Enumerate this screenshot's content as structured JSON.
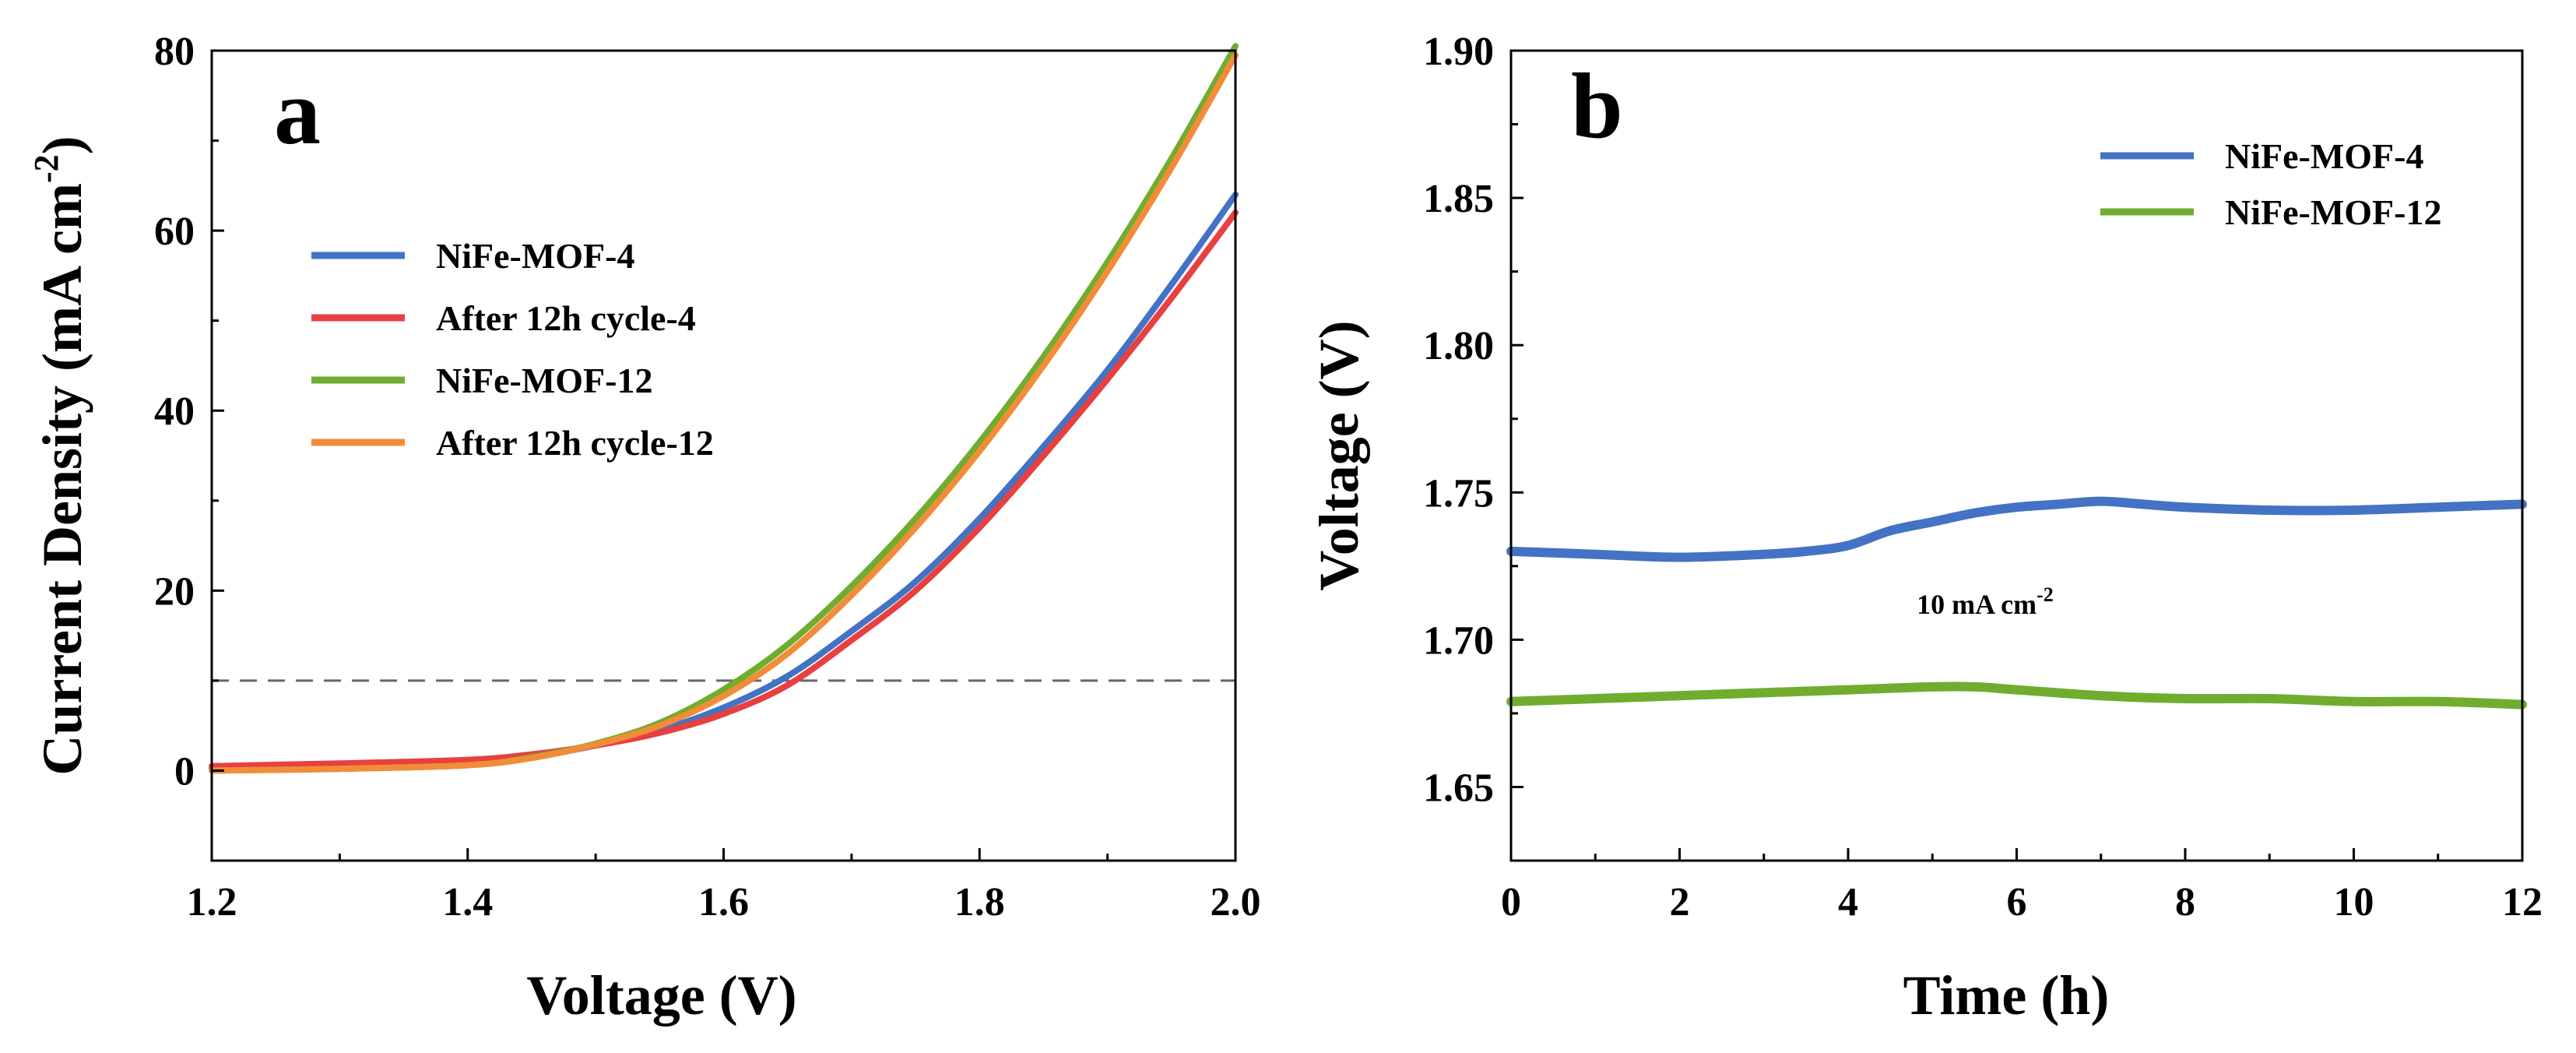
{
  "figure": {
    "background": "#ffffff"
  },
  "chart_data": [
    {
      "panel": "a",
      "type": "line",
      "title": "",
      "xlabel": "Voltage (V)",
      "ylabel": "Current Density (mA cm",
      "ylabel_sup": "-2",
      "ylabel_close": ")",
      "xlim": [
        1.2,
        2.0
      ],
      "ylim": [
        -10,
        80
      ],
      "xticks": [
        1.2,
        1.4,
        1.6,
        1.8,
        2.0
      ],
      "xtick_labels": [
        "1.2",
        "1.4",
        "1.6",
        "1.8",
        "2.0"
      ],
      "yticks": [
        0,
        20,
        40,
        60,
        80
      ],
      "ytick_labels": [
        "0",
        "20",
        "40",
        "60",
        "80"
      ],
      "grid": false,
      "legend_position": "upper-left",
      "reference_line": {
        "y": 10,
        "style": "dashed",
        "color": "#666666"
      },
      "series": [
        {
          "name": "NiFe-MOF-4",
          "color": "#4472c4",
          "x": [
            1.2,
            1.3,
            1.4,
            1.45,
            1.5,
            1.55,
            1.6,
            1.65,
            1.7,
            1.75,
            1.8,
            1.85,
            1.9,
            1.95,
            2.0
          ],
          "y": [
            0.2,
            0.4,
            0.8,
            1.5,
            2.8,
            4.5,
            7.0,
            10.5,
            15.5,
            21.0,
            28.0,
            36.0,
            44.5,
            54.0,
            64.0
          ]
        },
        {
          "name": "After 12h cycle-4",
          "color": "#e84040",
          "x": [
            1.2,
            1.3,
            1.4,
            1.45,
            1.5,
            1.55,
            1.6,
            1.65,
            1.7,
            1.75,
            1.8,
            1.85,
            1.9,
            1.95,
            2.0
          ],
          "y": [
            0.5,
            0.8,
            1.2,
            1.8,
            2.8,
            4.2,
            6.3,
            9.5,
            14.5,
            20.0,
            27.0,
            35.0,
            43.5,
            52.5,
            62.0
          ]
        },
        {
          "name": "NiFe-MOF-12",
          "color": "#70ad2e",
          "x": [
            1.2,
            1.3,
            1.4,
            1.45,
            1.5,
            1.55,
            1.6,
            1.65,
            1.7,
            1.75,
            1.8,
            1.85,
            1.9,
            1.95,
            2.0
          ],
          "y": [
            0.0,
            0.2,
            0.6,
            1.5,
            3.0,
            5.3,
            9.0,
            14.0,
            20.5,
            28.0,
            36.5,
            46.0,
            56.5,
            68.0,
            80.5
          ]
        },
        {
          "name": "After 12h cycle-12",
          "color": "#f28c38",
          "x": [
            1.2,
            1.3,
            1.4,
            1.45,
            1.5,
            1.55,
            1.6,
            1.65,
            1.7,
            1.75,
            1.8,
            1.85,
            1.9,
            1.95,
            2.0
          ],
          "y": [
            0.0,
            0.2,
            0.6,
            1.4,
            2.9,
            5.0,
            8.3,
            13.0,
            19.5,
            27.0,
            35.5,
            45.0,
            55.5,
            67.0,
            79.5
          ]
        }
      ]
    },
    {
      "panel": "b",
      "type": "line",
      "title": "",
      "xlabel": "Time (h)",
      "ylabel": "Voltage (V)",
      "xlim": [
        0,
        12
      ],
      "ylim": [
        1.625,
        1.9
      ],
      "xticks": [
        0,
        2,
        4,
        6,
        8,
        10,
        12
      ],
      "xtick_labels": [
        "0",
        "2",
        "4",
        "6",
        "8",
        "10",
        "12"
      ],
      "yticks": [
        1.65,
        1.7,
        1.75,
        1.8,
        1.85,
        1.9
      ],
      "ytick_labels": [
        "1.65",
        "1.70",
        "1.75",
        "1.80",
        "1.85",
        "1.90"
      ],
      "grid": false,
      "legend_position": "upper-right",
      "annotation": {
        "text": "10 mA cm",
        "sup": "-2"
      },
      "series": [
        {
          "name": "NiFe-MOF-4",
          "color": "#4472c4",
          "x": [
            0,
            1,
            2,
            3,
            3.5,
            4,
            4.5,
            5,
            5.5,
            6,
            6.5,
            7,
            7.5,
            8,
            9,
            10,
            11,
            12
          ],
          "y": [
            1.73,
            1.729,
            1.728,
            1.729,
            1.73,
            1.732,
            1.737,
            1.74,
            1.743,
            1.745,
            1.746,
            1.747,
            1.746,
            1.745,
            1.744,
            1.744,
            1.745,
            1.746
          ]
        },
        {
          "name": "NiFe-MOF-12",
          "color": "#70ad2e",
          "x": [
            0,
            1,
            2,
            3,
            4,
            5,
            5.5,
            6,
            7,
            8,
            9,
            10,
            11,
            12
          ],
          "y": [
            1.679,
            1.68,
            1.681,
            1.682,
            1.683,
            1.684,
            1.684,
            1.683,
            1.681,
            1.68,
            1.68,
            1.679,
            1.679,
            1.678
          ]
        }
      ]
    }
  ]
}
